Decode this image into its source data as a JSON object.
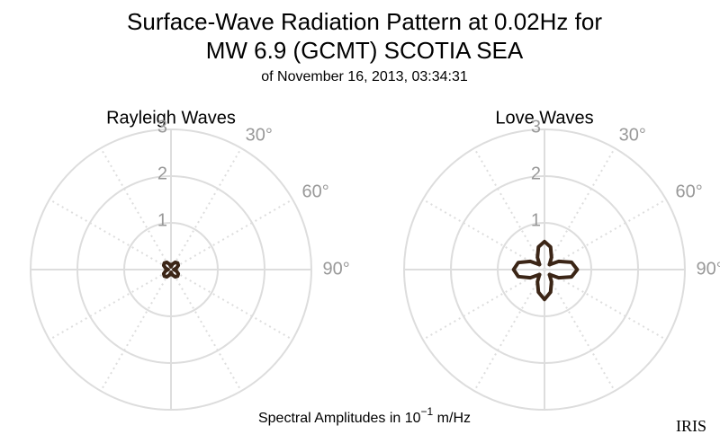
{
  "header": {
    "title_line1": "Surface-Wave Radiation Pattern at 0.02Hz for",
    "title_line2": "MW 6.9 (GCMT) SCOTIA SEA",
    "subtitle": "of November 16, 2013, 03:34:31"
  },
  "footnote": {
    "prefix": "Spectral Amplitudes in 10",
    "exponent": "−1",
    "suffix": " m/Hz"
  },
  "logo": "IRIS",
  "chart_data": [
    {
      "type": "polar",
      "title": "Rayleigh Waves",
      "rlim": [
        0,
        3
      ],
      "rticks": [
        1,
        2,
        3
      ],
      "thetaticks": [
        {
          "value": 30,
          "label": "30°"
        },
        {
          "value": 60,
          "label": "60°"
        },
        {
          "value": 90,
          "label": "90°"
        }
      ],
      "theta": [
        0,
        15,
        30,
        45,
        60,
        75,
        90,
        105,
        120,
        135,
        150,
        165,
        180,
        195,
        210,
        225,
        240,
        255,
        270,
        285,
        300,
        315,
        330,
        345
      ],
      "series": [
        {
          "name": "Rayleigh",
          "color": "#3b2516",
          "values": [
            0.06,
            0.12,
            0.18,
            0.2,
            0.18,
            0.12,
            0.06,
            0.12,
            0.18,
            0.2,
            0.18,
            0.12,
            0.06,
            0.12,
            0.18,
            0.2,
            0.18,
            0.12,
            0.06,
            0.12,
            0.18,
            0.2,
            0.18,
            0.12
          ]
        }
      ]
    },
    {
      "type": "polar",
      "title": "Love Waves",
      "rlim": [
        0,
        3
      ],
      "rticks": [
        1,
        2,
        3
      ],
      "thetaticks": [
        {
          "value": 30,
          "label": "30°"
        },
        {
          "value": 60,
          "label": "60°"
        },
        {
          "value": 90,
          "label": "90°"
        }
      ],
      "theta": [
        0,
        15,
        30,
        45,
        60,
        75,
        90,
        105,
        120,
        135,
        150,
        165,
        180,
        195,
        210,
        225,
        240,
        255,
        270,
        285,
        300,
        315,
        330,
        345
      ],
      "series": [
        {
          "name": "Love",
          "color": "#3b2516",
          "values": [
            0.6,
            0.5,
            0.3,
            0.15,
            0.35,
            0.6,
            0.7,
            0.6,
            0.35,
            0.15,
            0.3,
            0.5,
            0.64,
            0.5,
            0.3,
            0.15,
            0.35,
            0.58,
            0.66,
            0.58,
            0.35,
            0.15,
            0.3,
            0.5
          ]
        }
      ]
    }
  ]
}
